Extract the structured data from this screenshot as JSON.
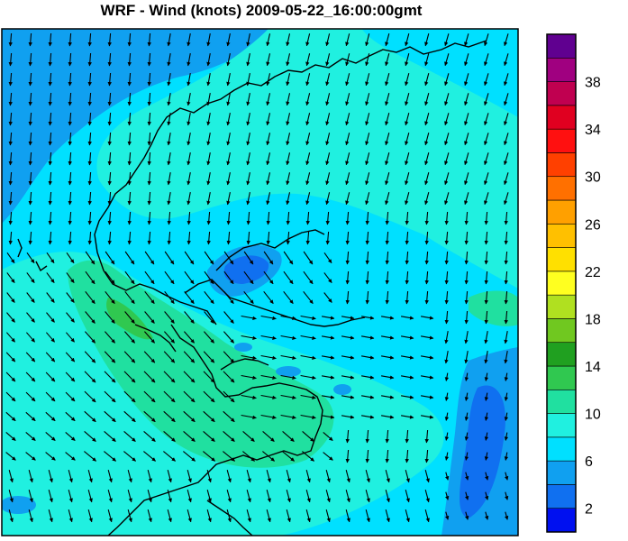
{
  "title": "WRF - Wind (knots) 2009-05-22_16:00:00gmt",
  "legend": {
    "labels": [
      "2",
      "6",
      "10",
      "14",
      "18",
      "22",
      "26",
      "30",
      "34",
      "38"
    ],
    "colors": [
      "#0010f0",
      "#1070f0",
      "#10a0f0",
      "#00e0ff",
      "#20f0e0",
      "#20e0a0",
      "#30c850",
      "#20a020",
      "#70c820",
      "#b0e020",
      "#ffff20",
      "#ffe000",
      "#ffc000",
      "#ffa000",
      "#ff7000",
      "#ff4000",
      "#ff1010",
      "#e00020",
      "#c00050",
      "#a00080",
      "#600090"
    ]
  }
}
